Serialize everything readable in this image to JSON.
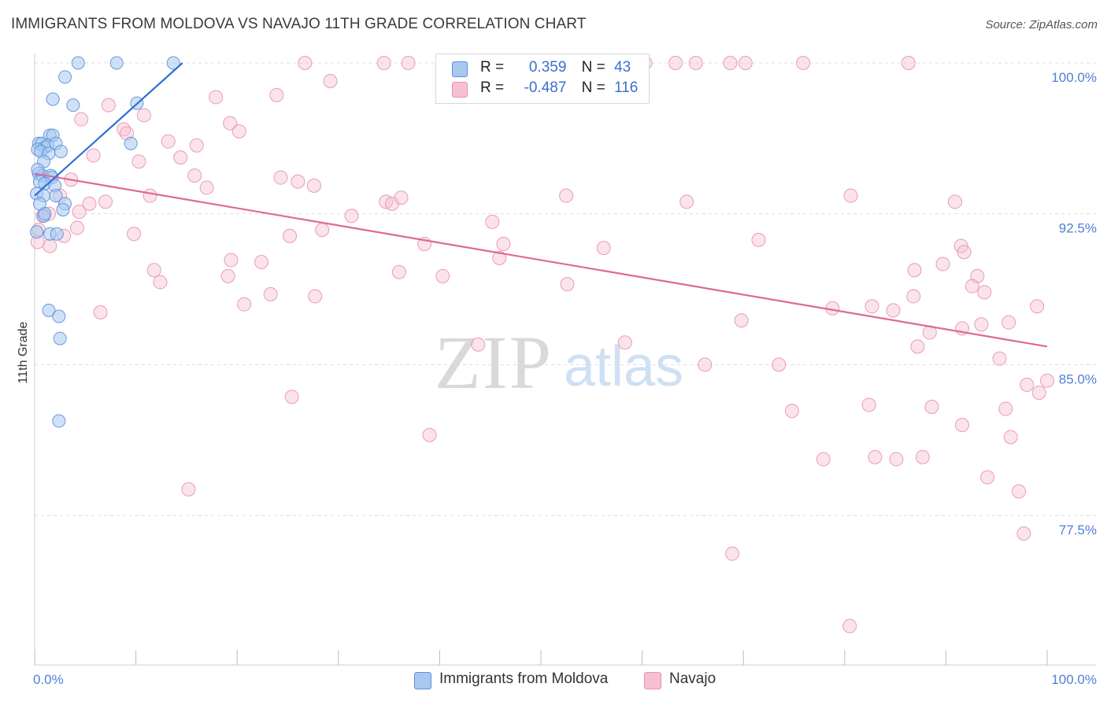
{
  "title": "IMMIGRANTS FROM MOLDOVA VS NAVAJO 11TH GRADE CORRELATION CHART",
  "source": "Source: ZipAtlas.com",
  "watermark": {
    "zip": "ZIP",
    "atlas": "atlas"
  },
  "legend": {
    "series1": {
      "r_label": "R =",
      "r_value": "0.359",
      "n_label": "N =",
      "n_value": "43"
    },
    "series2": {
      "r_label": "R =",
      "r_value": "-0.487",
      "n_label": "N =",
      "n_value": "116"
    }
  },
  "colors": {
    "moldova_fill": "#a8c8f0",
    "moldova_stroke": "#5b8fd8",
    "moldova_line": "#2f6fd6",
    "navajo_fill": "#f7c0d2",
    "navajo_stroke": "#e891b0",
    "navajo_line": "#e0679a",
    "axis_text": "#4f7fd6",
    "grid": "#dddddd"
  },
  "chart_data": {
    "type": "scatter",
    "title": "IMMIGRANTS FROM MOLDOVA VS NAVAJO 11TH GRADE CORRELATION CHART",
    "xlabel": "",
    "ylabel": "11th Grade",
    "xlim": [
      0,
      100
    ],
    "ylim": [
      70.5,
      100.5
    ],
    "x_tick_labels": [
      "0.0%",
      "100.0%"
    ],
    "y_ticks": [
      77.5,
      85.0,
      92.5,
      100.0
    ],
    "y_tick_labels": [
      "77.5%",
      "85.0%",
      "92.5%",
      "100.0%"
    ],
    "grid": true,
    "legend_position": "top-center",
    "series": [
      {
        "name": "Immigrants from Moldova",
        "r": 0.359,
        "n": 43,
        "trend": [
          [
            0.0,
            93.4
          ],
          [
            14.6,
            100.0
          ]
        ],
        "points": [
          [
            4.3,
            100.0
          ],
          [
            8.1,
            100.0
          ],
          [
            13.7,
            100.0
          ],
          [
            3.0,
            99.3
          ],
          [
            1.8,
            98.2
          ],
          [
            3.8,
            97.9
          ],
          [
            10.1,
            98.0
          ],
          [
            1.5,
            96.4
          ],
          [
            1.8,
            96.4
          ],
          [
            0.4,
            96.0
          ],
          [
            0.7,
            96.0
          ],
          [
            1.0,
            95.8
          ],
          [
            1.3,
            95.9
          ],
          [
            2.1,
            96.0
          ],
          [
            0.3,
            95.7
          ],
          [
            0.6,
            95.6
          ],
          [
            1.4,
            95.5
          ],
          [
            2.6,
            95.6
          ],
          [
            9.5,
            96.0
          ],
          [
            0.9,
            95.1
          ],
          [
            0.4,
            94.5
          ],
          [
            0.8,
            94.4
          ],
          [
            1.6,
            94.4
          ],
          [
            1.7,
            94.3
          ],
          [
            0.5,
            94.1
          ],
          [
            1.0,
            94.0
          ],
          [
            2.0,
            93.9
          ],
          [
            0.2,
            93.5
          ],
          [
            0.9,
            93.4
          ],
          [
            2.1,
            93.4
          ],
          [
            0.5,
            93.0
          ],
          [
            3.0,
            93.0
          ],
          [
            2.8,
            92.7
          ],
          [
            0.9,
            92.4
          ],
          [
            0.2,
            91.6
          ],
          [
            1.5,
            91.5
          ],
          [
            2.2,
            91.5
          ],
          [
            1.4,
            87.7
          ],
          [
            2.4,
            87.4
          ],
          [
            2.5,
            86.3
          ],
          [
            2.4,
            82.2
          ],
          [
            1.0,
            92.5
          ],
          [
            0.3,
            94.7
          ]
        ]
      },
      {
        "name": "Navajo",
        "r": -0.487,
        "n": 116,
        "trend": [
          [
            0.0,
            94.5
          ],
          [
            100.0,
            85.9
          ]
        ],
        "points": [
          [
            26.7,
            100.0
          ],
          [
            34.5,
            100.0
          ],
          [
            36.9,
            100.0
          ],
          [
            52.6,
            100.0
          ],
          [
            59.8,
            100.0
          ],
          [
            60.3,
            100.0
          ],
          [
            63.3,
            100.0
          ],
          [
            65.3,
            100.0
          ],
          [
            68.7,
            100.0
          ],
          [
            70.2,
            100.0
          ],
          [
            75.9,
            100.0
          ],
          [
            86.3,
            100.0
          ],
          [
            29.2,
            99.1
          ],
          [
            17.9,
            98.3
          ],
          [
            23.9,
            98.4
          ],
          [
            7.3,
            97.9
          ],
          [
            10.8,
            97.4
          ],
          [
            4.6,
            97.2
          ],
          [
            19.3,
            97.0
          ],
          [
            20.2,
            96.6
          ],
          [
            8.8,
            96.7
          ],
          [
            9.1,
            96.5
          ],
          [
            13.2,
            96.1
          ],
          [
            16.0,
            95.9
          ],
          [
            5.8,
            95.4
          ],
          [
            10.3,
            95.1
          ],
          [
            14.4,
            95.3
          ],
          [
            15.8,
            94.4
          ],
          [
            24.3,
            94.3
          ],
          [
            26.0,
            94.1
          ],
          [
            3.6,
            94.2
          ],
          [
            17.0,
            93.8
          ],
          [
            27.6,
            93.9
          ],
          [
            11.4,
            93.4
          ],
          [
            5.4,
            93.0
          ],
          [
            7.0,
            93.1
          ],
          [
            2.5,
            93.4
          ],
          [
            34.7,
            93.1
          ],
          [
            35.3,
            93.0
          ],
          [
            36.2,
            93.3
          ],
          [
            52.5,
            93.4
          ],
          [
            64.4,
            93.1
          ],
          [
            80.6,
            93.4
          ],
          [
            90.9,
            93.1
          ],
          [
            4.4,
            92.6
          ],
          [
            1.4,
            92.5
          ],
          [
            0.8,
            92.4
          ],
          [
            31.3,
            92.4
          ],
          [
            45.2,
            92.1
          ],
          [
            4.2,
            91.8
          ],
          [
            9.8,
            91.5
          ],
          [
            28.4,
            91.7
          ],
          [
            25.2,
            91.4
          ],
          [
            2.9,
            91.4
          ],
          [
            0.3,
            91.1
          ],
          [
            1.5,
            90.9
          ],
          [
            38.5,
            91.0
          ],
          [
            46.3,
            91.0
          ],
          [
            56.2,
            90.8
          ],
          [
            71.5,
            91.2
          ],
          [
            91.5,
            90.9
          ],
          [
            91.8,
            90.6
          ],
          [
            45.9,
            90.3
          ],
          [
            19.4,
            90.2
          ],
          [
            22.4,
            90.1
          ],
          [
            89.7,
            90.0
          ],
          [
            11.8,
            89.7
          ],
          [
            19.1,
            89.4
          ],
          [
            36.0,
            89.6
          ],
          [
            40.3,
            89.4
          ],
          [
            86.9,
            89.7
          ],
          [
            93.1,
            89.4
          ],
          [
            12.4,
            89.1
          ],
          [
            52.6,
            89.0
          ],
          [
            92.6,
            88.9
          ],
          [
            93.8,
            88.6
          ],
          [
            23.3,
            88.5
          ],
          [
            27.7,
            88.4
          ],
          [
            86.8,
            88.4
          ],
          [
            20.7,
            88.0
          ],
          [
            78.8,
            87.8
          ],
          [
            82.7,
            87.9
          ],
          [
            84.8,
            87.7
          ],
          [
            99.0,
            87.9
          ],
          [
            6.5,
            87.6
          ],
          [
            69.8,
            87.2
          ],
          [
            93.5,
            87.0
          ],
          [
            96.2,
            87.1
          ],
          [
            91.6,
            86.8
          ],
          [
            43.8,
            86.0
          ],
          [
            58.3,
            86.1
          ],
          [
            87.2,
            85.9
          ],
          [
            88.4,
            86.6
          ],
          [
            95.3,
            85.3
          ],
          [
            66.2,
            85.0
          ],
          [
            73.5,
            85.0
          ],
          [
            98.0,
            84.0
          ],
          [
            100.0,
            84.2
          ],
          [
            99.2,
            83.6
          ],
          [
            25.4,
            83.4
          ],
          [
            82.4,
            83.0
          ],
          [
            95.9,
            82.8
          ],
          [
            74.8,
            82.7
          ],
          [
            88.6,
            82.9
          ],
          [
            91.6,
            82.0
          ],
          [
            39.0,
            81.5
          ],
          [
            96.4,
            81.4
          ],
          [
            83.0,
            80.4
          ],
          [
            85.1,
            80.3
          ],
          [
            77.9,
            80.3
          ],
          [
            87.7,
            80.4
          ],
          [
            94.1,
            79.4
          ],
          [
            15.2,
            78.8
          ],
          [
            97.2,
            78.7
          ],
          [
            97.7,
            76.6
          ],
          [
            68.9,
            75.6
          ],
          [
            80.5,
            72.0
          ],
          [
            0.4,
            91.7
          ]
        ]
      }
    ]
  },
  "bottom_legend": {
    "items": [
      {
        "label": "Immigrants from Moldova"
      },
      {
        "label": "Navajo"
      }
    ]
  }
}
